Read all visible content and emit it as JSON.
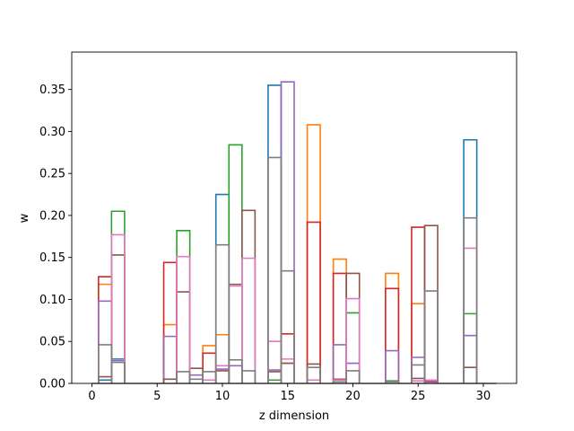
{
  "chart_data": {
    "type": "histogram-step",
    "title": "",
    "xlabel": "z dimension",
    "ylabel": "w",
    "xlim": [
      -1.55,
      32.55
    ],
    "ylim": [
      0,
      0.3945
    ],
    "xticks": [
      0,
      5,
      10,
      15,
      20,
      25,
      30
    ],
    "yticks": [
      0.0,
      0.05,
      0.1,
      0.15,
      0.2,
      0.25,
      0.3,
      0.35
    ],
    "bar_width": 1,
    "series": [
      {
        "color": "#1f77b4",
        "bars": [
          {
            "x": 1,
            "y": 0.004
          },
          {
            "x": 2,
            "y": 0.029
          },
          {
            "x": 10,
            "y": 0.225
          },
          {
            "x": 14,
            "y": 0.355
          },
          {
            "x": 29,
            "y": 0.29
          }
        ]
      },
      {
        "color": "#ff7f0e",
        "bars": [
          {
            "x": 1,
            "y": 0.118
          },
          {
            "x": 6,
            "y": 0.07
          },
          {
            "x": 9,
            "y": 0.045
          },
          {
            "x": 10,
            "y": 0.058
          },
          {
            "x": 15,
            "y": 0.024
          },
          {
            "x": 17,
            "y": 0.308
          },
          {
            "x": 19,
            "y": 0.148
          },
          {
            "x": 23,
            "y": 0.131
          },
          {
            "x": 25,
            "y": 0.095
          }
        ]
      },
      {
        "color": "#2ca02c",
        "bars": [
          {
            "x": 2,
            "y": 0.205
          },
          {
            "x": 7,
            "y": 0.182
          },
          {
            "x": 11,
            "y": 0.284
          },
          {
            "x": 14,
            "y": 0.004
          },
          {
            "x": 20,
            "y": 0.084
          },
          {
            "x": 23,
            "y": 0.003
          },
          {
            "x": 29,
            "y": 0.083
          }
        ]
      },
      {
        "color": "#d62728",
        "bars": [
          {
            "x": 1,
            "y": 0.127
          },
          {
            "x": 6,
            "y": 0.144
          },
          {
            "x": 9,
            "y": 0.036
          },
          {
            "x": 15,
            "y": 0.059
          },
          {
            "x": 17,
            "y": 0.192
          },
          {
            "x": 19,
            "y": 0.131
          },
          {
            "x": 23,
            "y": 0.113
          },
          {
            "x": 25,
            "y": 0.186
          },
          {
            "x": 26,
            "y": 0.002
          }
        ]
      },
      {
        "color": "#9467bd",
        "bars": [
          {
            "x": 1,
            "y": 0.098
          },
          {
            "x": 2,
            "y": 0.027
          },
          {
            "x": 6,
            "y": 0.056
          },
          {
            "x": 8,
            "y": 0.01
          },
          {
            "x": 10,
            "y": 0.017
          },
          {
            "x": 11,
            "y": 0.021
          },
          {
            "x": 14,
            "y": 0.016
          },
          {
            "x": 15,
            "y": 0.359
          },
          {
            "x": 19,
            "y": 0.046
          },
          {
            "x": 20,
            "y": 0.024
          },
          {
            "x": 23,
            "y": 0.039
          },
          {
            "x": 25,
            "y": 0.031
          },
          {
            "x": 26,
            "y": 0.003
          },
          {
            "x": 29,
            "y": 0.057
          }
        ]
      },
      {
        "color": "#8c564b",
        "bars": [
          {
            "x": 1,
            "y": 0.008
          },
          {
            "x": 2,
            "y": 0.153
          },
          {
            "x": 6,
            "y": 0.005
          },
          {
            "x": 7,
            "y": 0.109
          },
          {
            "x": 8,
            "y": 0.018
          },
          {
            "x": 10,
            "y": 0.015
          },
          {
            "x": 11,
            "y": 0.118
          },
          {
            "x": 12,
            "y": 0.206
          },
          {
            "x": 14,
            "y": 0.014
          },
          {
            "x": 15,
            "y": 0.024
          },
          {
            "x": 17,
            "y": 0.023
          },
          {
            "x": 19,
            "y": 0.005
          },
          {
            "x": 20,
            "y": 0.131
          },
          {
            "x": 25,
            "y": 0.006
          },
          {
            "x": 26,
            "y": 0.188
          },
          {
            "x": 29,
            "y": 0.019
          }
        ]
      },
      {
        "color": "#e377c2",
        "bars": [
          {
            "x": 2,
            "y": 0.177
          },
          {
            "x": 7,
            "y": 0.151
          },
          {
            "x": 9,
            "y": 0.004
          },
          {
            "x": 10,
            "y": 0.021
          },
          {
            "x": 11,
            "y": 0.116
          },
          {
            "x": 12,
            "y": 0.149
          },
          {
            "x": 14,
            "y": 0.05
          },
          {
            "x": 15,
            "y": 0.029
          },
          {
            "x": 17,
            "y": 0.004
          },
          {
            "x": 19,
            "y": 0.004
          },
          {
            "x": 20,
            "y": 0.101
          },
          {
            "x": 25,
            "y": 0.003
          },
          {
            "x": 26,
            "y": 0.004
          },
          {
            "x": 29,
            "y": 0.161
          }
        ]
      },
      {
        "color": "#7f7f7f",
        "bars": [
          {
            "x": 1,
            "y": 0.046
          },
          {
            "x": 2,
            "y": 0.025
          },
          {
            "x": 7,
            "y": 0.014
          },
          {
            "x": 8,
            "y": 0.005
          },
          {
            "x": 9,
            "y": 0.014
          },
          {
            "x": 10,
            "y": 0.165
          },
          {
            "x": 11,
            "y": 0.028
          },
          {
            "x": 12,
            "y": 0.015
          },
          {
            "x": 14,
            "y": 0.269
          },
          {
            "x": 15,
            "y": 0.134
          },
          {
            "x": 17,
            "y": 0.019
          },
          {
            "x": 19,
            "y": 0.002
          },
          {
            "x": 20,
            "y": 0.015
          },
          {
            "x": 23,
            "y": 0.002
          },
          {
            "x": 25,
            "y": 0.022
          },
          {
            "x": 26,
            "y": 0.11
          },
          {
            "x": 29,
            "y": 0.197
          }
        ]
      }
    ]
  }
}
